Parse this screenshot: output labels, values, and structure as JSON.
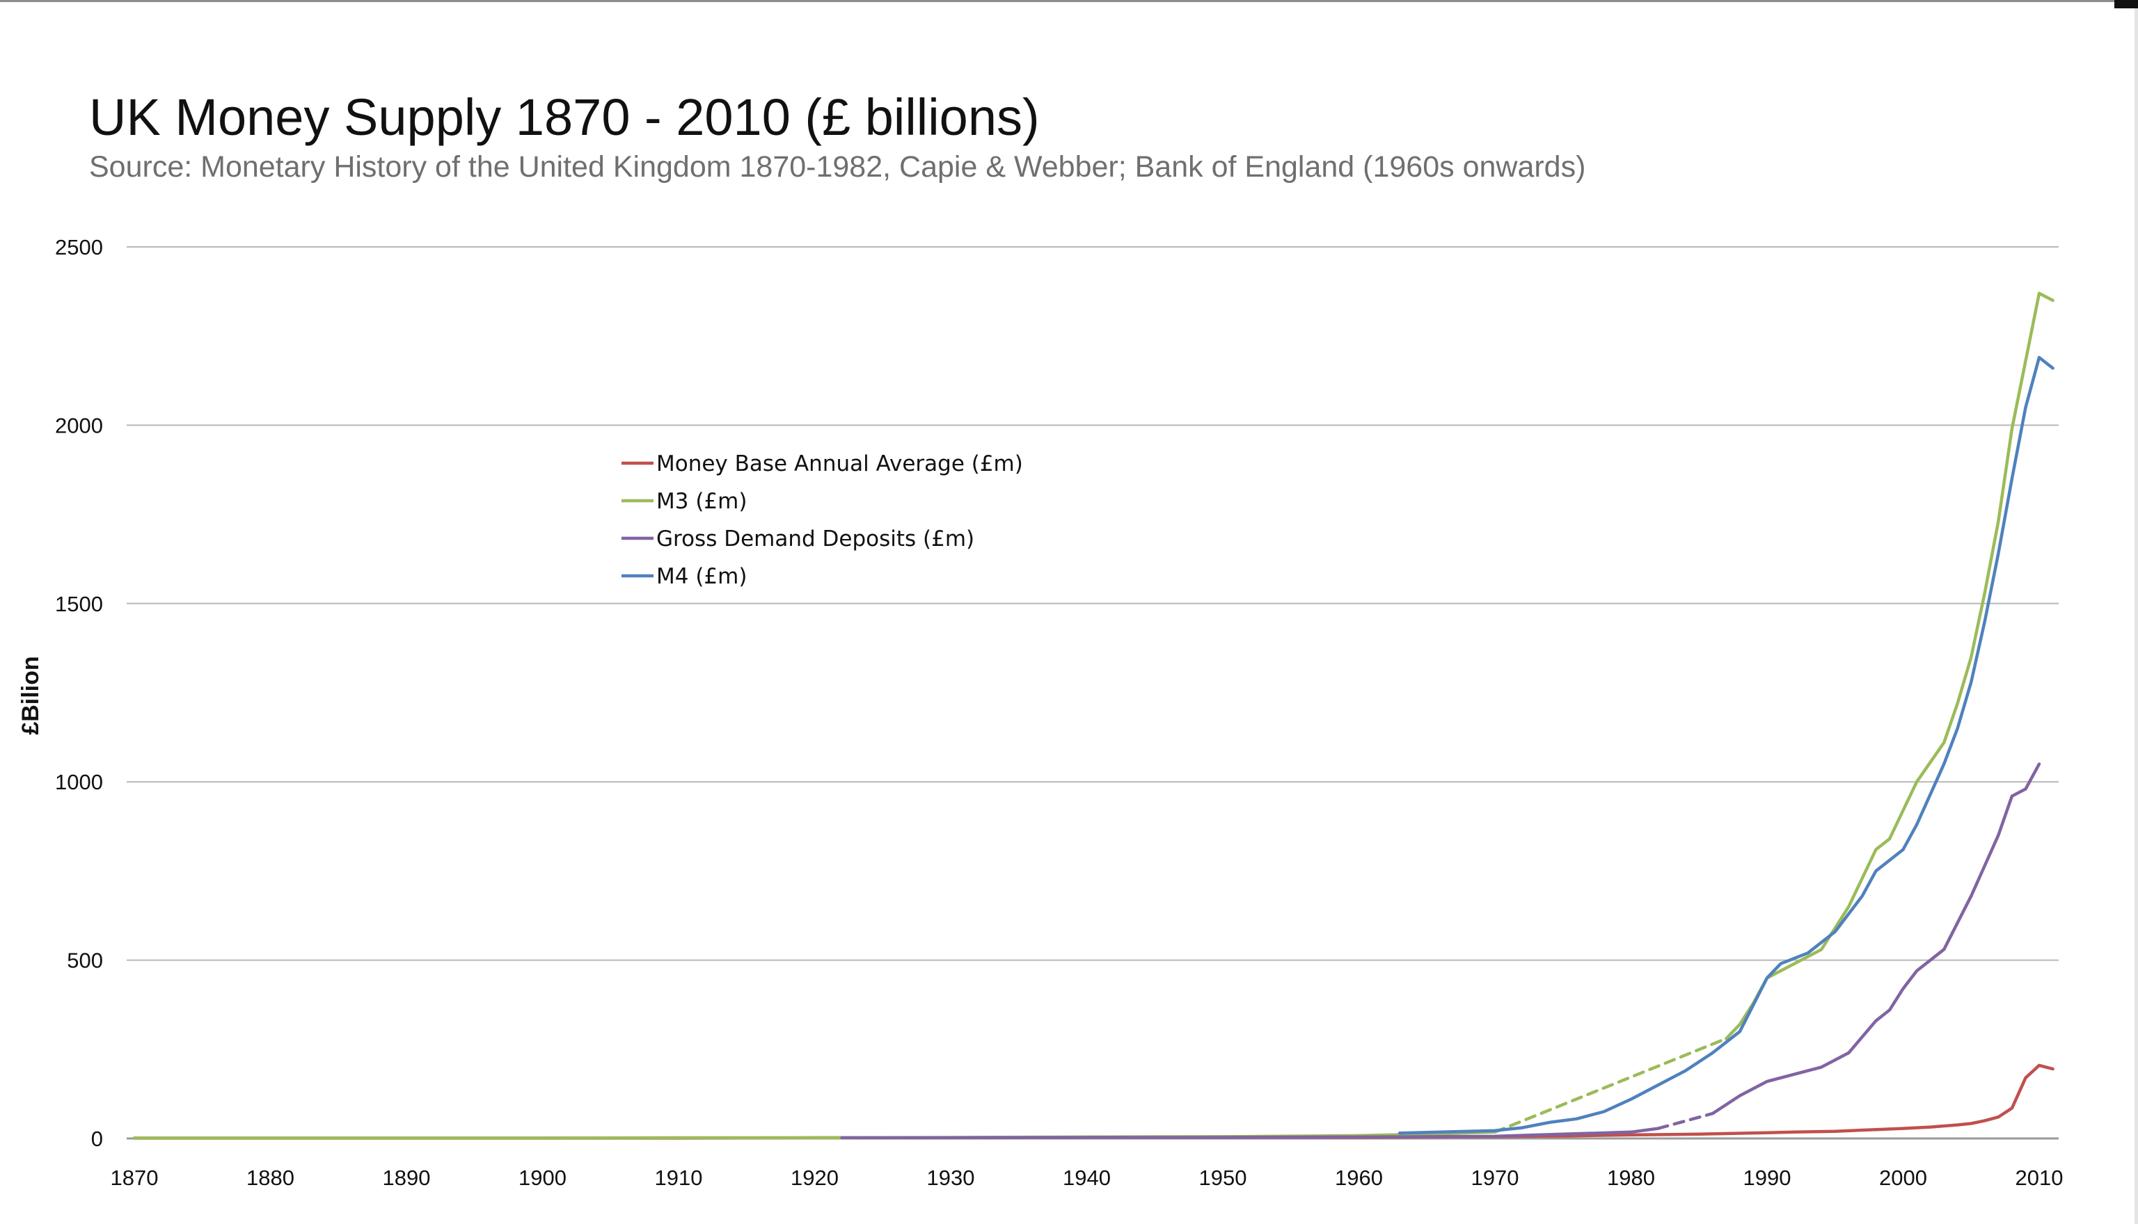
{
  "chart_data": {
    "type": "line",
    "title": "UK Money Supply 1870 - 2010 (£ billions)",
    "subtitle": "Source: Monetary History of the United Kingdom 1870-1982, Capie & Webber; Bank of England (1960s onwards)",
    "xlabel": "",
    "ylabel": "£Bilion",
    "xlim": [
      1870,
      2012
    ],
    "ylim": [
      0,
      2500
    ],
    "xticks": [
      1870,
      1880,
      1890,
      1900,
      1910,
      1920,
      1930,
      1940,
      1950,
      1960,
      1970,
      1980,
      1990,
      2000,
      2010
    ],
    "yticks": [
      0,
      500,
      1000,
      1500,
      2000,
      2500
    ],
    "grid": "horizontal",
    "legend_position": "upper-left-center",
    "series": [
      {
        "name": "Money Base Annual Average (£m)",
        "color": "#c0504d",
        "segments": [
          {
            "style": "solid",
            "points": [
              [
                1870,
                1
              ],
              [
                1880,
                1
              ],
              [
                1890,
                1
              ],
              [
                1900,
                1
              ],
              [
                1910,
                1
              ],
              [
                1920,
                2
              ],
              [
                1930,
                2
              ],
              [
                1940,
                3
              ],
              [
                1950,
                3
              ],
              [
                1960,
                3
              ],
              [
                1965,
                4
              ],
              [
                1970,
                5
              ],
              [
                1975,
                7
              ],
              [
                1980,
                10
              ],
              [
                1985,
                12
              ],
              [
                1990,
                16
              ],
              [
                1992,
                18
              ],
              [
                1995,
                20
              ],
              [
                1998,
                25
              ],
              [
                2000,
                28
              ],
              [
                2002,
                32
              ],
              [
                2004,
                38
              ],
              [
                2005,
                42
              ],
              [
                2006,
                50
              ],
              [
                2007,
                60
              ],
              [
                2008,
                85
              ],
              [
                2009,
                170
              ],
              [
                2010,
                205
              ],
              [
                2011,
                195
              ]
            ]
          }
        ]
      },
      {
        "name": "M3 (£m)",
        "color": "#9bbb59",
        "segments": [
          {
            "style": "solid",
            "points": [
              [
                1870,
                1
              ],
              [
                1880,
                1
              ],
              [
                1890,
                1
              ],
              [
                1900,
                1
              ],
              [
                1910,
                2
              ],
              [
                1920,
                2
              ],
              [
                1930,
                3
              ],
              [
                1940,
                4
              ],
              [
                1950,
                5
              ],
              [
                1960,
                8
              ],
              [
                1965,
                12
              ],
              [
                1970,
                18
              ]
            ]
          },
          {
            "style": "dashed",
            "points": [
              [
                1970,
                18
              ],
              [
                1987,
                280
              ]
            ]
          },
          {
            "style": "solid",
            "points": [
              [
                1987,
                280
              ],
              [
                1988,
                320
              ],
              [
                1989,
                380
              ],
              [
                1990,
                450
              ],
              [
                1992,
                490
              ],
              [
                1994,
                530
              ],
              [
                1996,
                650
              ],
              [
                1998,
                810
              ],
              [
                1999,
                840
              ],
              [
                2000,
                920
              ],
              [
                2001,
                1000
              ],
              [
                2003,
                1110
              ],
              [
                2004,
                1220
              ],
              [
                2005,
                1350
              ],
              [
                2006,
                1530
              ],
              [
                2007,
                1730
              ],
              [
                2008,
                1990
              ],
              [
                2009,
                2180
              ],
              [
                2010,
                2370
              ],
              [
                2011,
                2350
              ]
            ]
          }
        ]
      },
      {
        "name": "Gross Demand Deposits (£m)",
        "color": "#8064a2",
        "segments": [
          {
            "style": "solid",
            "points": [
              [
                1922,
                2
              ],
              [
                1930,
                2
              ],
              [
                1940,
                3
              ],
              [
                1950,
                3
              ],
              [
                1960,
                4
              ],
              [
                1965,
                5
              ],
              [
                1970,
                6
              ],
              [
                1975,
                12
              ],
              [
                1980,
                18
              ],
              [
                1982,
                28
              ]
            ]
          },
          {
            "style": "dashed",
            "points": [
              [
                1982,
                28
              ],
              [
                1986,
                70
              ]
            ]
          },
          {
            "style": "solid",
            "points": [
              [
                1986,
                70
              ],
              [
                1988,
                120
              ],
              [
                1990,
                160
              ],
              [
                1992,
                180
              ],
              [
                1994,
                200
              ],
              [
                1996,
                240
              ],
              [
                1998,
                330
              ],
              [
                1999,
                360
              ],
              [
                2000,
                420
              ],
              [
                2001,
                470
              ],
              [
                2003,
                530
              ],
              [
                2005,
                680
              ],
              [
                2007,
                850
              ],
              [
                2008,
                960
              ],
              [
                2009,
                980
              ],
              [
                2010,
                1050
              ]
            ]
          }
        ]
      },
      {
        "name": "M4 (£m)",
        "color": "#4f81bd",
        "segments": [
          {
            "style": "solid",
            "points": [
              [
                1963,
                15
              ],
              [
                1966,
                18
              ],
              [
                1970,
                22
              ],
              [
                1972,
                30
              ],
              [
                1974,
                45
              ],
              [
                1976,
                55
              ],
              [
                1978,
                75
              ],
              [
                1980,
                110
              ],
              [
                1982,
                150
              ],
              [
                1984,
                190
              ],
              [
                1986,
                240
              ],
              [
                1988,
                300
              ],
              [
                1990,
                450
              ],
              [
                1991,
                490
              ],
              [
                1993,
                520
              ],
              [
                1995,
                580
              ],
              [
                1997,
                680
              ],
              [
                1998,
                750
              ],
              [
                2000,
                810
              ],
              [
                2001,
                880
              ],
              [
                2003,
                1050
              ],
              [
                2004,
                1150
              ],
              [
                2005,
                1280
              ],
              [
                2006,
                1450
              ],
              [
                2007,
                1640
              ],
              [
                2008,
                1850
              ],
              [
                2009,
                2050
              ],
              [
                2010,
                2190
              ],
              [
                2011,
                2160
              ]
            ]
          }
        ]
      }
    ]
  }
}
